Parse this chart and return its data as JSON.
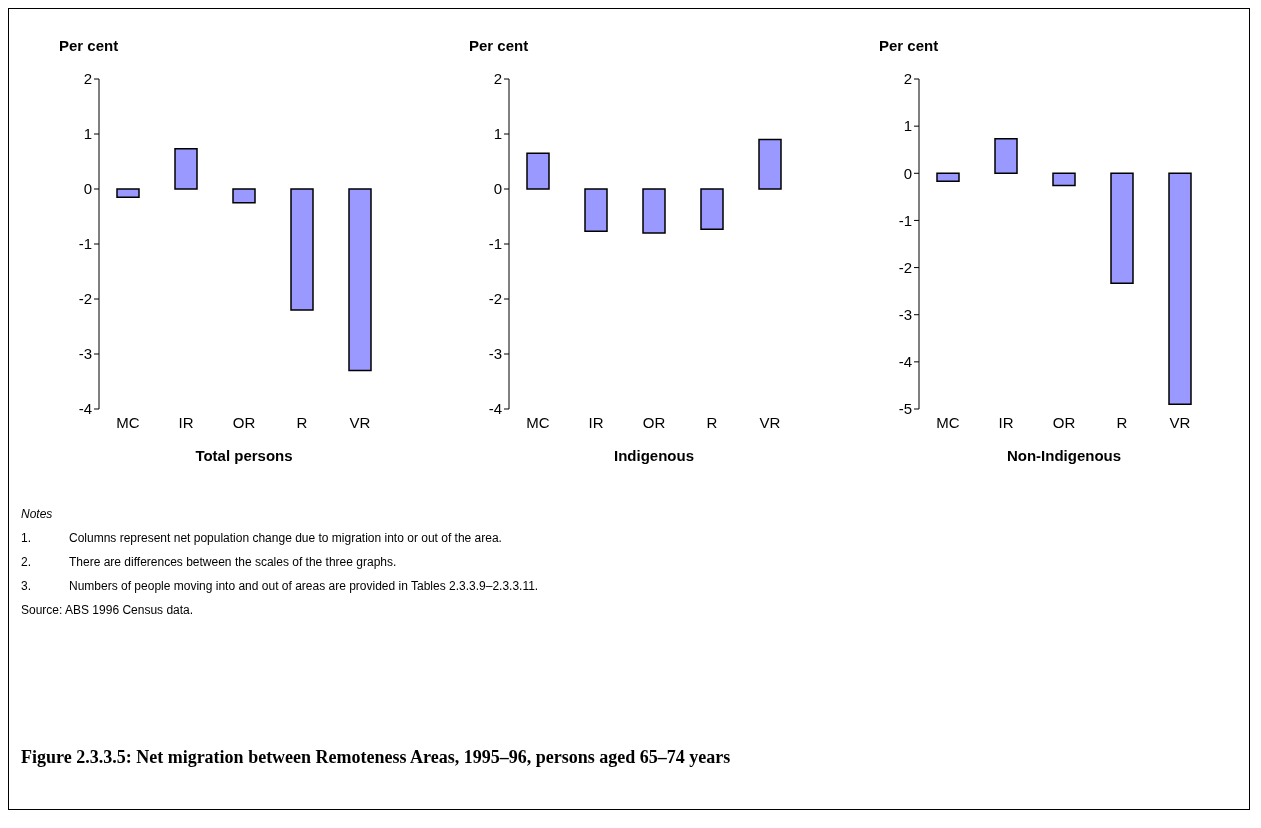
{
  "chart_data": [
    {
      "type": "bar",
      "ylabel": "Per cent",
      "xlabel": "Total persons",
      "categories": [
        "MC",
        "IR",
        "OR",
        "R",
        "VR"
      ],
      "values": [
        -0.15,
        0.73,
        -0.25,
        -2.2,
        -3.3
      ],
      "color": "#9999ff",
      "ylim": [
        -4,
        2
      ],
      "yticks": [
        -4,
        -3,
        -2,
        -1,
        0,
        1,
        2
      ],
      "grid": false,
      "legend": false,
      "annotations": [
        "Notes",
        "1.\tColumns represent net population change due to migration into or out of the area.",
        "2.\tThere are differences between the scales of the three graphs.",
        "3.\tNumbers of people moving into and out of areas are provided in Tables 2.3.3.9–2.3.3.11.",
        "Source: ABS 1996 Census data.",
        "Figure 2.3.3.5: Net migration between Remoteness Areas, 1995–96, persons aged 65–74 years"
      ]
    },
    {
      "type": "bar",
      "ylabel": "Per cent",
      "xlabel": "Indigenous",
      "categories": [
        "MC",
        "IR",
        "OR",
        "R",
        "VR"
      ],
      "values": [
        0.65,
        -0.77,
        -0.8,
        -0.73,
        0.9
      ],
      "color": "#9999ff",
      "ylim": [
        -4,
        2
      ],
      "yticks": [
        -4,
        -3,
        -2,
        -1,
        0,
        1,
        2
      ],
      "grid": false,
      "legend": false
    },
    {
      "type": "bar",
      "ylabel": "Per cent",
      "xlabel": "Non-Indigenous",
      "categories": [
        "MC",
        "IR",
        "OR",
        "R",
        "VR"
      ],
      "values": [
        -0.17,
        0.73,
        -0.26,
        -2.33,
        -4.9
      ],
      "color": "#9999ff",
      "ylim": [
        -5,
        2
      ],
      "yticks": [
        -5,
        -4,
        -3,
        -2,
        -1,
        0,
        1,
        2
      ],
      "grid": false,
      "legend": false
    }
  ]
}
